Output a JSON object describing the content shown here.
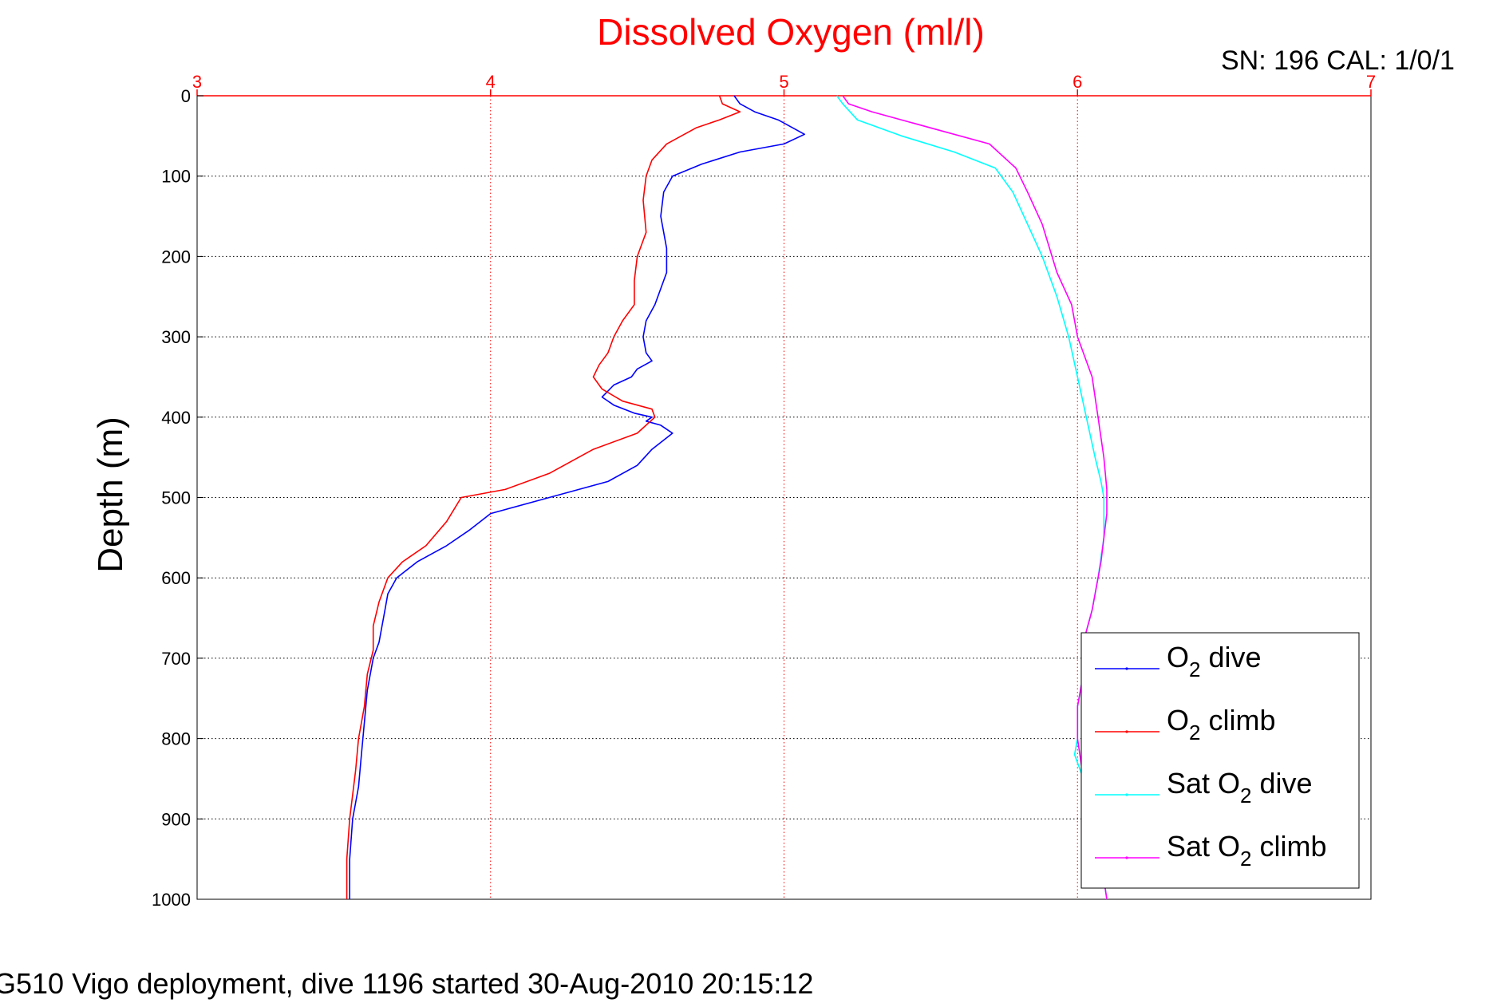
{
  "chart_data": {
    "type": "line",
    "title": "Dissolved Oxygen (ml/l)",
    "subtitle": "SN: 196  CAL: 1/0/1",
    "footer": "G510 Vigo deployment, dive 1196 started 30-Aug-2010 20:15:12",
    "ylabel": "Depth (m)",
    "xlabel": "",
    "xlim": [
      3,
      7
    ],
    "ylim": [
      0,
      1000
    ],
    "y_reversed": true,
    "x_axis_position": "top",
    "x_ticks": [
      3,
      4,
      5,
      6,
      7
    ],
    "y_ticks": [
      0,
      100,
      200,
      300,
      400,
      500,
      600,
      700,
      800,
      900,
      1000
    ],
    "grid": true,
    "legend_position": "bottom-right",
    "colors": {
      "axes_red": "#ff0000",
      "grid": "#000000",
      "o2_dive": "#0000ff",
      "o2_climb": "#ff0000",
      "sat_dive": "#00ffff",
      "sat_climb": "#ff00ff"
    },
    "series": [
      {
        "name": "O2 dive",
        "legend": {
          "pre": "O",
          "sub": "2",
          "post": " dive"
        },
        "color": "#0000ff",
        "x": [
          4.83,
          4.85,
          4.9,
          4.98,
          5.07,
          5.0,
          4.85,
          4.72,
          4.62,
          4.59,
          4.58,
          4.6,
          4.6,
          4.56,
          4.53,
          4.52,
          4.53,
          4.55,
          4.5,
          4.48,
          4.42,
          4.38,
          4.42,
          4.49,
          4.55,
          4.53,
          4.58,
          4.62,
          4.55,
          4.5,
          4.4,
          4.2,
          4.0,
          3.93,
          3.85,
          3.75,
          3.68,
          3.65,
          3.64,
          3.63,
          3.62,
          3.6,
          3.58,
          3.57,
          3.56,
          3.55,
          3.53,
          3.52,
          3.52
        ],
        "y": [
          0,
          10,
          20,
          30,
          48,
          60,
          70,
          85,
          100,
          120,
          150,
          190,
          220,
          260,
          280,
          300,
          320,
          330,
          340,
          350,
          360,
          375,
          385,
          395,
          400,
          405,
          410,
          420,
          440,
          460,
          480,
          500,
          520,
          540,
          560,
          580,
          600,
          620,
          640,
          660,
          680,
          700,
          740,
          780,
          820,
          860,
          900,
          950,
          1000
        ]
      },
      {
        "name": "O2 climb",
        "legend": {
          "pre": "O",
          "sub": "2",
          "post": " climb"
        },
        "color": "#ff0000",
        "x": [
          4.78,
          4.79,
          4.85,
          4.78,
          4.7,
          4.6,
          4.55,
          4.53,
          4.52,
          4.53,
          4.5,
          4.49,
          4.49,
          4.45,
          4.42,
          4.4,
          4.37,
          4.35,
          4.38,
          4.45,
          4.55,
          4.56,
          4.5,
          4.35,
          4.2,
          4.05,
          3.9,
          3.85,
          3.78,
          3.7,
          3.65,
          3.62,
          3.6,
          3.6,
          3.58,
          3.57,
          3.55,
          3.54,
          3.53,
          3.52,
          3.51,
          3.51
        ],
        "y": [
          0,
          10,
          20,
          30,
          40,
          60,
          80,
          100,
          130,
          170,
          200,
          230,
          260,
          280,
          300,
          320,
          335,
          350,
          365,
          380,
          390,
          400,
          420,
          440,
          470,
          490,
          500,
          530,
          560,
          580,
          600,
          630,
          660,
          690,
          720,
          760,
          800,
          840,
          870,
          900,
          950,
          1000
        ]
      },
      {
        "name": "Sat O2 dive",
        "legend": {
          "pre": "Sat O",
          "sub": "2",
          "post": " dive"
        },
        "color": "#00ffff",
        "x": [
          5.18,
          5.2,
          5.25,
          5.4,
          5.58,
          5.72,
          5.78,
          5.83,
          5.88,
          5.93,
          5.97,
          6.0,
          6.03,
          6.06,
          6.08,
          6.09,
          6.09,
          6.07,
          6.05,
          6.02,
          6.02,
          6.0,
          6.0,
          5.99,
          6.02,
          6.06,
          6.1
        ],
        "y": [
          0,
          10,
          30,
          50,
          70,
          90,
          120,
          160,
          200,
          250,
          300,
          350,
          400,
          450,
          480,
          500,
          550,
          600,
          640,
          680,
          720,
          760,
          800,
          820,
          850,
          900,
          1000
        ]
      },
      {
        "name": "Sat O2 climb",
        "legend": {
          "pre": "Sat O",
          "sub": "2",
          "post": " climb"
        },
        "color": "#ff00ff",
        "x": [
          5.2,
          5.22,
          5.3,
          5.5,
          5.7,
          5.79,
          5.83,
          5.88,
          5.93,
          5.98,
          6.0,
          6.05,
          6.07,
          6.09,
          6.1,
          6.1,
          6.08,
          6.05,
          6.02,
          6.02,
          6.0,
          6.0,
          6.02,
          6.06,
          6.1
        ],
        "y": [
          0,
          10,
          20,
          40,
          60,
          90,
          120,
          160,
          220,
          260,
          300,
          350,
          400,
          450,
          490,
          520,
          580,
          640,
          680,
          720,
          760,
          800,
          850,
          900,
          1000
        ]
      }
    ]
  }
}
